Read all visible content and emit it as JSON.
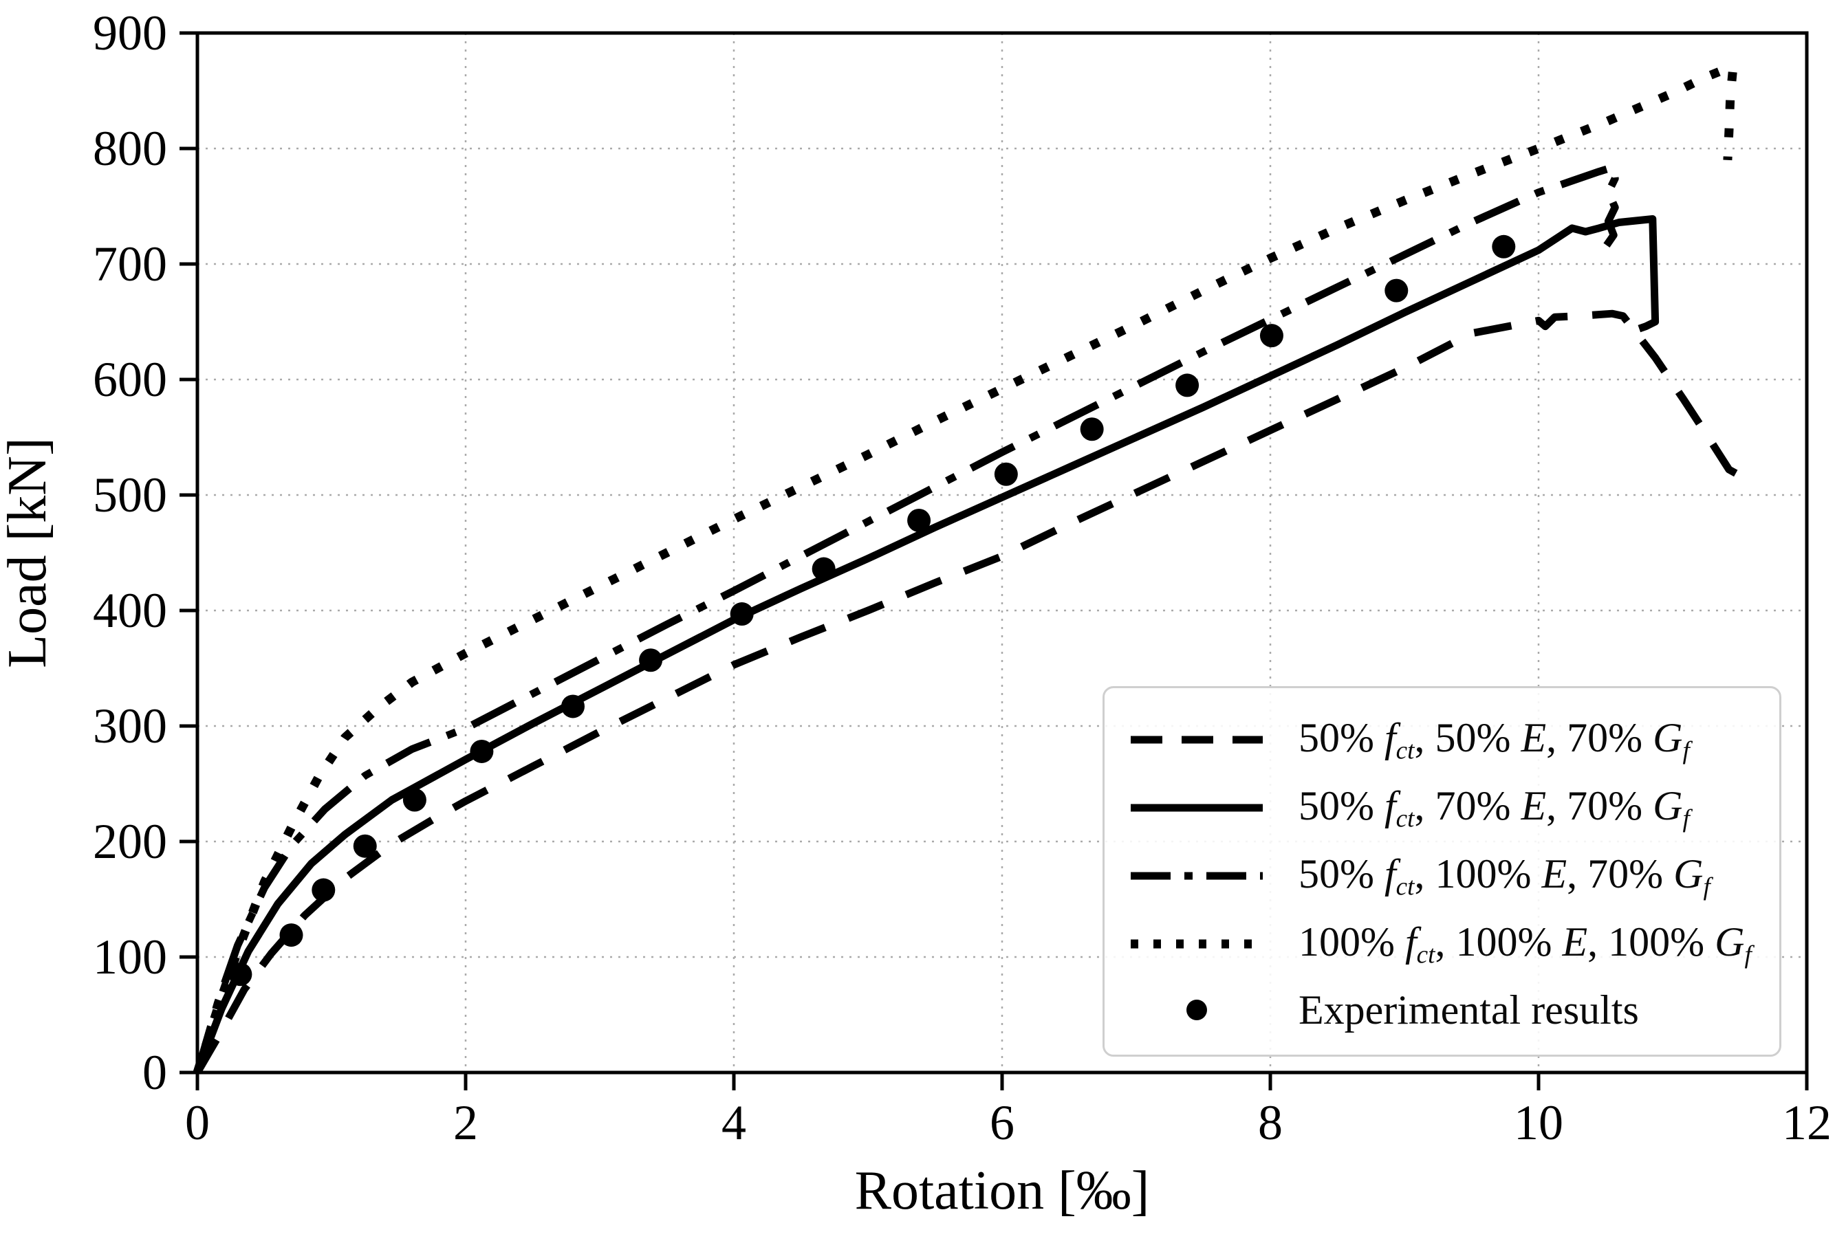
{
  "chart_data": {
    "type": "line",
    "title": "",
    "xlabel": "Rotation [‰]",
    "ylabel": "Load [kN]",
    "xlim": [
      0,
      12
    ],
    "ylim": [
      0,
      900
    ],
    "x_ticks": [
      0,
      2,
      4,
      6,
      8,
      10,
      12
    ],
    "y_ticks": [
      0,
      100,
      200,
      300,
      400,
      500,
      600,
      700,
      800,
      900
    ],
    "grid": true,
    "grid_color": "#aaaaaa",
    "line_color": "#000000",
    "legend_position": "lower right",
    "series": [
      {
        "name": "50% fct, 50% E, 70% Gf",
        "linestyle": "dashed",
        "color": "#000000",
        "points": [
          [
            0,
            0
          ],
          [
            0.15,
            30
          ],
          [
            0.35,
            72
          ],
          [
            0.55,
            103
          ],
          [
            0.8,
            136
          ],
          [
            1.1,
            168
          ],
          [
            1.45,
            198
          ],
          [
            1.8,
            222
          ],
          [
            2,
            235
          ],
          [
            2.5,
            265
          ],
          [
            3,
            295
          ],
          [
            3.5,
            324
          ],
          [
            4,
            353
          ],
          [
            4.5,
            377
          ],
          [
            5,
            400
          ],
          [
            5.5,
            424
          ],
          [
            6,
            447
          ],
          [
            6.5,
            475
          ],
          [
            7,
            502
          ],
          [
            7.5,
            529
          ],
          [
            8,
            556
          ],
          [
            8.5,
            583
          ],
          [
            9,
            610
          ],
          [
            9.5,
            640
          ],
          [
            10,
            651
          ],
          [
            10.05,
            646
          ],
          [
            10.12,
            654
          ],
          [
            10.3,
            655
          ],
          [
            10.55,
            657
          ],
          [
            10.63,
            655
          ],
          [
            10.87,
            619
          ],
          [
            11.08,
            583
          ],
          [
            11.26,
            551
          ],
          [
            11.42,
            522
          ],
          [
            11.56,
            513
          ]
        ]
      },
      {
        "name": "50% fct, 70% E, 70% Gf",
        "linestyle": "solid",
        "color": "#000000",
        "points": [
          [
            0,
            0
          ],
          [
            0.18,
            55
          ],
          [
            0.38,
            105
          ],
          [
            0.6,
            146
          ],
          [
            0.85,
            181
          ],
          [
            1.1,
            206
          ],
          [
            1.45,
            236
          ],
          [
            2,
            271
          ],
          [
            2.5,
            302
          ],
          [
            3,
            332
          ],
          [
            3.5,
            362
          ],
          [
            4,
            392
          ],
          [
            4.5,
            419
          ],
          [
            5,
            445
          ],
          [
            5.5,
            472
          ],
          [
            6,
            498
          ],
          [
            6.5,
            524
          ],
          [
            7,
            550
          ],
          [
            7.5,
            576
          ],
          [
            8,
            603
          ],
          [
            8.5,
            630
          ],
          [
            9,
            658
          ],
          [
            9.5,
            685
          ],
          [
            10,
            712
          ],
          [
            10.25,
            731
          ],
          [
            10.35,
            728
          ],
          [
            10.45,
            731
          ],
          [
            10.6,
            736
          ],
          [
            10.85,
            739
          ],
          [
            10.86,
            695
          ],
          [
            10.87,
            650
          ],
          [
            10.8,
            646
          ],
          [
            10.75,
            644
          ]
        ]
      },
      {
        "name": "50% fct, 100% E, 70% Gf",
        "linestyle": "dashdot",
        "color": "#000000",
        "points": [
          [
            0,
            0
          ],
          [
            0.15,
            60
          ],
          [
            0.3,
            110
          ],
          [
            0.5,
            160
          ],
          [
            0.7,
            196
          ],
          [
            0.95,
            228
          ],
          [
            1.25,
            257
          ],
          [
            1.6,
            280
          ],
          [
            2,
            298
          ],
          [
            2.5,
            328
          ],
          [
            3,
            358
          ],
          [
            3.5,
            388
          ],
          [
            4,
            417
          ],
          [
            4.5,
            447
          ],
          [
            5,
            477
          ],
          [
            5.5,
            507
          ],
          [
            6,
            537
          ],
          [
            6.5,
            566
          ],
          [
            7,
            595
          ],
          [
            7.5,
            624
          ],
          [
            8,
            652
          ],
          [
            8.5,
            680
          ],
          [
            9,
            708
          ],
          [
            9.5,
            736
          ],
          [
            10,
            762
          ],
          [
            10.2,
            770
          ],
          [
            10.45,
            780
          ],
          [
            10.56,
            784
          ],
          [
            10.57,
            774
          ],
          [
            10.52,
            762
          ],
          [
            10.57,
            749
          ],
          [
            10.52,
            737
          ],
          [
            10.56,
            725
          ],
          [
            10.5,
            715
          ]
        ]
      },
      {
        "name": "100% fct, 100% E, 100% Gf",
        "linestyle": "dotted",
        "color": "#000000",
        "points": [
          [
            0,
            0
          ],
          [
            0.15,
            55
          ],
          [
            0.3,
            105
          ],
          [
            0.5,
            165
          ],
          [
            0.7,
            212
          ],
          [
            0.9,
            255
          ],
          [
            1.1,
            290
          ],
          [
            1.35,
            316
          ],
          [
            1.6,
            338
          ],
          [
            2,
            363
          ],
          [
            2.5,
            392
          ],
          [
            3,
            421
          ],
          [
            3.5,
            450
          ],
          [
            4,
            479
          ],
          [
            4.5,
            507
          ],
          [
            5,
            535
          ],
          [
            5.5,
            564
          ],
          [
            6,
            592
          ],
          [
            6.5,
            620
          ],
          [
            7,
            648
          ],
          [
            7.5,
            677
          ],
          [
            8,
            705
          ],
          [
            8.5,
            731
          ],
          [
            9,
            755
          ],
          [
            9.5,
            778
          ],
          [
            10,
            800
          ],
          [
            10.5,
            823
          ],
          [
            11,
            848
          ],
          [
            11.25,
            862
          ],
          [
            11.4,
            869
          ],
          [
            11.45,
            870
          ],
          [
            11.43,
            845
          ],
          [
            11.42,
            815
          ],
          [
            11.41,
            790
          ]
        ]
      },
      {
        "name": "Experimental results",
        "linestyle": "scatter",
        "color": "#000000",
        "points": [
          [
            0.32,
            85
          ],
          [
            0.7,
            119
          ],
          [
            0.94,
            158
          ],
          [
            1.25,
            196
          ],
          [
            1.62,
            236
          ],
          [
            2.12,
            278
          ],
          [
            2.8,
            317
          ],
          [
            3.38,
            357
          ],
          [
            4.06,
            397
          ],
          [
            4.67,
            436
          ],
          [
            5.38,
            478
          ],
          [
            6.03,
            518
          ],
          [
            6.67,
            557
          ],
          [
            7.38,
            595
          ],
          [
            8.01,
            638
          ],
          [
            8.94,
            677
          ],
          [
            9.74,
            715
          ]
        ]
      }
    ],
    "legend": {
      "items": [
        {
          "parts": [
            {
              "t": "50% "
            },
            {
              "t": "f",
              "s": "i"
            },
            {
              "t": "ct",
              "s": "sub"
            },
            {
              "t": ", 50% "
            },
            {
              "t": "E",
              "s": "i"
            },
            {
              "t": ", 70% "
            },
            {
              "t": "G",
              "s": "i"
            },
            {
              "t": "f",
              "s": "sub"
            }
          ]
        },
        {
          "parts": [
            {
              "t": "50% "
            },
            {
              "t": "f",
              "s": "i"
            },
            {
              "t": "ct",
              "s": "sub"
            },
            {
              "t": ", 70% "
            },
            {
              "t": "E",
              "s": "i"
            },
            {
              "t": ", 70% "
            },
            {
              "t": "G",
              "s": "i"
            },
            {
              "t": "f",
              "s": "sub"
            }
          ]
        },
        {
          "parts": [
            {
              "t": "50% "
            },
            {
              "t": "f",
              "s": "i"
            },
            {
              "t": "ct",
              "s": "sub"
            },
            {
              "t": ", 100% "
            },
            {
              "t": "E",
              "s": "i"
            },
            {
              "t": ", 70% "
            },
            {
              "t": "G",
              "s": "i"
            },
            {
              "t": "f",
              "s": "sub"
            }
          ]
        },
        {
          "parts": [
            {
              "t": "100% "
            },
            {
              "t": "f",
              "s": "i"
            },
            {
              "t": "ct",
              "s": "sub"
            },
            {
              "t": ", 100% "
            },
            {
              "t": "E",
              "s": "i"
            },
            {
              "t": ", 100% "
            },
            {
              "t": "G",
              "s": "i"
            },
            {
              "t": "f",
              "s": "sub"
            }
          ]
        },
        {
          "parts": [
            {
              "t": "Experimental results"
            }
          ]
        }
      ]
    }
  }
}
